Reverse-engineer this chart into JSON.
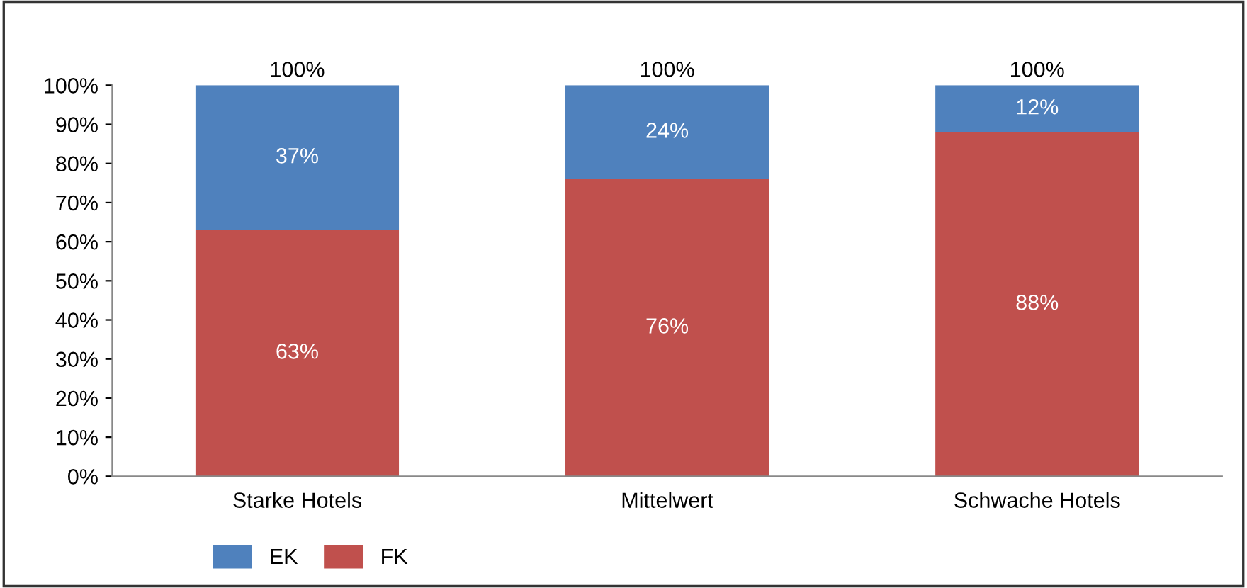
{
  "chart_data": {
    "type": "bar",
    "stacked": true,
    "categories": [
      "Starke Hotels",
      "Mittelwert",
      "Schwache Hotels"
    ],
    "series": [
      {
        "name": "FK",
        "color": "#c0504d",
        "values": [
          63,
          76,
          88
        ],
        "value_labels": [
          "63%",
          "76%",
          "88%"
        ]
      },
      {
        "name": "EK",
        "color": "#4f81bd",
        "values": [
          37,
          24,
          12
        ],
        "value_labels": [
          "37%",
          "24%",
          "12%"
        ]
      }
    ],
    "totals": [
      "100%",
      "100%",
      "100%"
    ],
    "ylim": [
      0,
      100
    ],
    "yticks": [
      {
        "value": 0,
        "label": "0%"
      },
      {
        "value": 10,
        "label": "10%"
      },
      {
        "value": 20,
        "label": "20%"
      },
      {
        "value": 30,
        "label": "30%"
      },
      {
        "value": 40,
        "label": "40%"
      },
      {
        "value": 50,
        "label": "50%"
      },
      {
        "value": 60,
        "label": "60%"
      },
      {
        "value": 70,
        "label": "70%"
      },
      {
        "value": 80,
        "label": "80%"
      },
      {
        "value": 90,
        "label": "90%"
      },
      {
        "value": 100,
        "label": "100%"
      }
    ],
    "grid": false,
    "legend": "bottom left"
  }
}
